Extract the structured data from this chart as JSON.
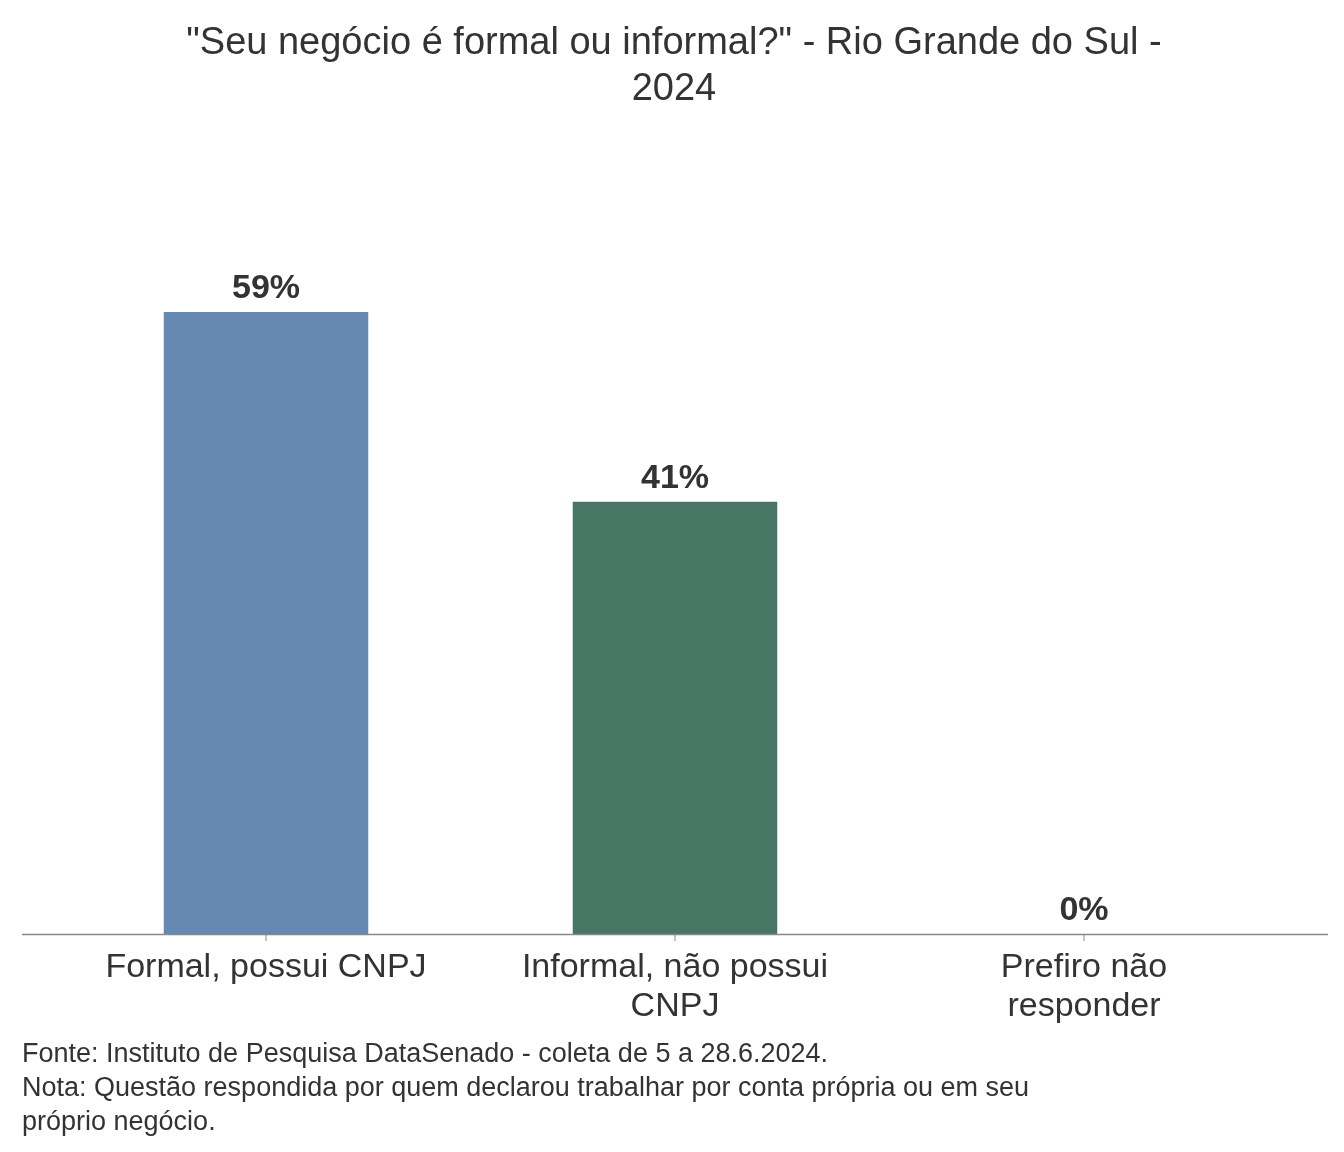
{
  "chart_data": {
    "type": "bar",
    "title": "\"Seu negócio é formal ou informal?\" - Rio Grande do Sul - 2024",
    "categories": [
      "Formal, possui CNPJ",
      "Informal, não possui CNPJ",
      "Prefiro não responder"
    ],
    "values": [
      59,
      41,
      0
    ],
    "value_labels": [
      "59%",
      "41%",
      "0%"
    ],
    "colors": [
      "#6589b0",
      "#477665",
      "#8a8a8a"
    ],
    "annotations": [
      "Fonte: Instituto de Pesquisa DataSenado - coleta de 5 a 28.6.2024.",
      "Nota: Questão respondida por quem declarou trabalhar por conta própria ou em seu próprio negócio."
    ]
  }
}
